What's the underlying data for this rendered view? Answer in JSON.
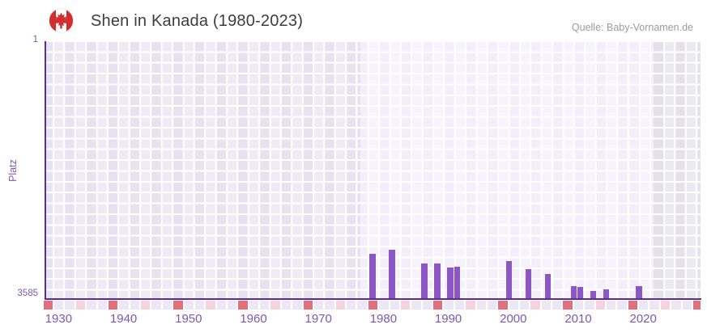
{
  "header": {
    "title": "Shen in Kanada (1980-2023)",
    "flag_icon": "canada-flag-icon",
    "source": "Quelle: Baby-Vornamen.de"
  },
  "colors": {
    "bar": "#8c57c5",
    "axis": "#5b2d94",
    "axis_text": "#7e57af",
    "title_text": "#3d3d3d",
    "source_text": "#9b9b9b",
    "zone_normal": "#e7e2f0",
    "zone_highlight": "#f2eefa",
    "zone_future": "#e4e1eb",
    "strip_base": "#ece7f4",
    "strip_half_decade": "#f5d3de",
    "strip_decade": "#e1707d",
    "flag_red": "#d32e2e"
  },
  "chart_data": {
    "type": "bar",
    "title": "Shen in Kanada (1980-2023)",
    "xlabel": "",
    "ylabel": "Platz",
    "y_axis": {
      "min": 1,
      "max": 3585,
      "inverted": true,
      "top_label": "1",
      "bottom_label": "3585"
    },
    "x_axis": {
      "range_years": [
        1929.5,
        2030.5
      ],
      "tick_years": [
        1930,
        1940,
        1950,
        1960,
        1970,
        1980,
        1990,
        2000,
        2010,
        2020
      ]
    },
    "highlight_band_years": [
      1979,
      2023
    ],
    "future_band_years": [
      2023,
      2030.5
    ],
    "legend": "none",
    "grid": "checkered",
    "series": [
      {
        "name": "Platz",
        "points": [
          {
            "year": 1980,
            "rank": 2950
          },
          {
            "year": 1983,
            "rank": 2900
          },
          {
            "year": 1988,
            "rank": 3090
          },
          {
            "year": 1990,
            "rank": 3090
          },
          {
            "year": 1992,
            "rank": 3145
          },
          {
            "year": 1993,
            "rank": 3130
          },
          {
            "year": 2001,
            "rank": 3050
          },
          {
            "year": 2004,
            "rank": 3165
          },
          {
            "year": 2007,
            "rank": 3240
          },
          {
            "year": 2011,
            "rank": 3410
          },
          {
            "year": 2012,
            "rank": 3420
          },
          {
            "year": 2014,
            "rank": 3470
          },
          {
            "year": 2016,
            "rank": 3445
          },
          {
            "year": 2021,
            "rank": 3410
          }
        ]
      }
    ],
    "note": "rank values estimated from pixel positions; lower rank number = taller bar"
  }
}
